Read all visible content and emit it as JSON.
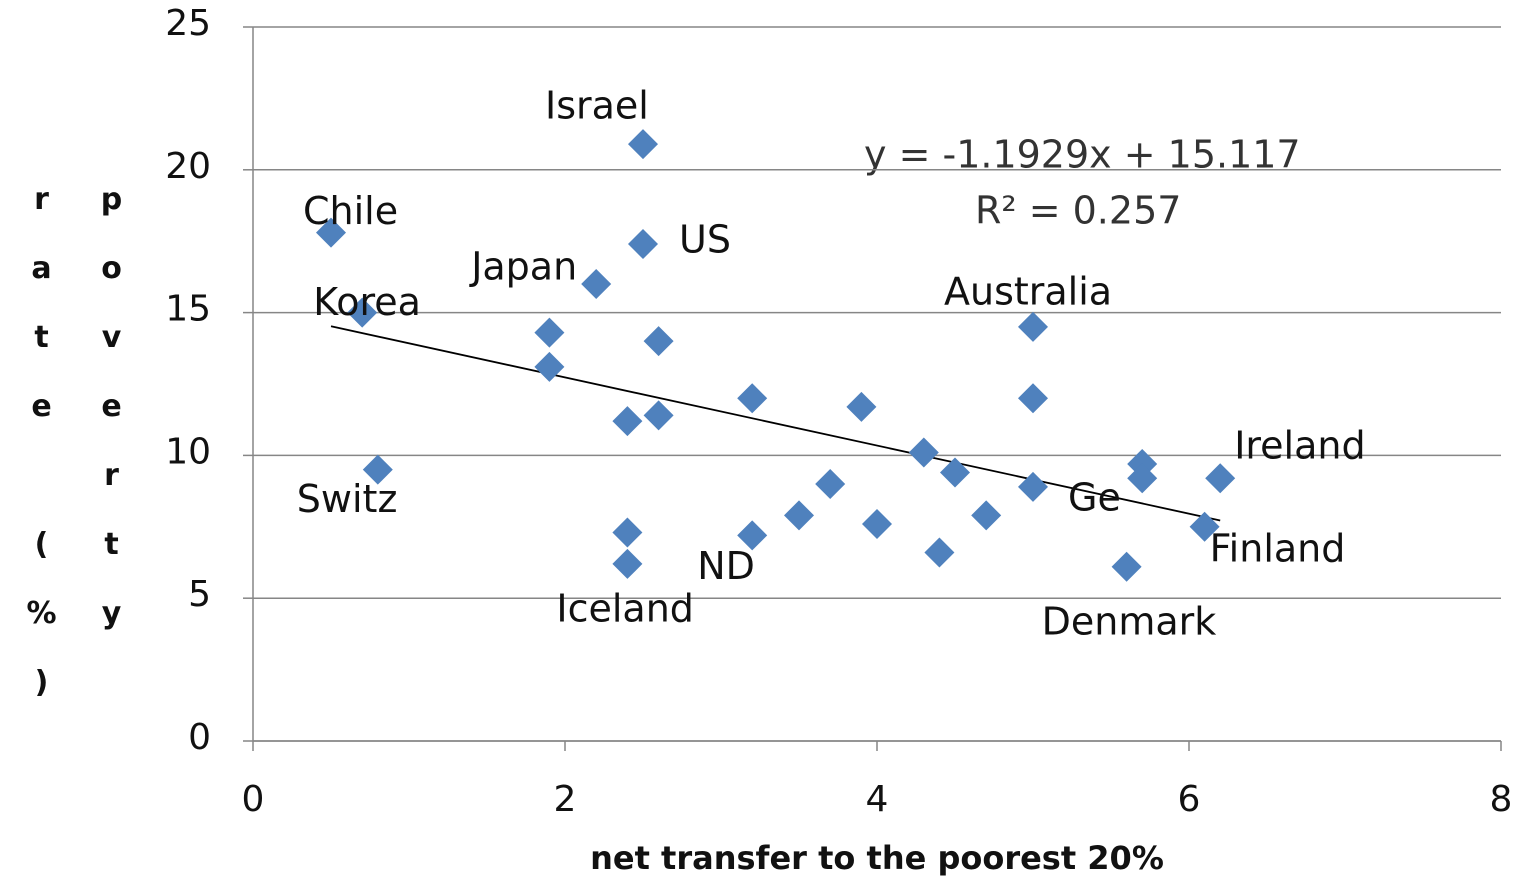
{
  "chart_data": {
    "type": "scatter",
    "xlabel": "net transfer to the poorest 20%",
    "ylabel": [
      "poverty",
      "rate (%)"
    ],
    "x": [
      0.5,
      0.7,
      0.8,
      2.5,
      2.5,
      2.2,
      1.9,
      1.9,
      2.6,
      2.4,
      2.6,
      2.4,
      2.4,
      3.2,
      3.2,
      3.5,
      3.7,
      3.9,
      4.0,
      4.3,
      4.5,
      4.4,
      4.7,
      5.0,
      5.0,
      5.0,
      5.7,
      5.7,
      5.6,
      6.1,
      6.2
    ],
    "values": [
      17.8,
      15.0,
      9.5,
      20.9,
      17.4,
      16.0,
      14.3,
      13.1,
      14.0,
      11.2,
      11.4,
      7.3,
      6.2,
      12.0,
      7.2,
      7.9,
      9.0,
      11.7,
      7.6,
      10.1,
      9.4,
      6.6,
      7.9,
      14.5,
      12.0,
      8.9,
      9.7,
      9.2,
      6.1,
      7.5,
      9.2
    ],
    "labels": [
      "Chile",
      "Korea",
      "Switz",
      "Israel",
      "US",
      "Japan",
      null,
      null,
      null,
      null,
      null,
      null,
      "Iceland",
      null,
      "ND",
      null,
      null,
      null,
      null,
      null,
      null,
      null,
      null,
      "Australia",
      null,
      "Ge",
      null,
      null,
      "Denmark",
      "Finland",
      "Ireland"
    ],
    "color": "#4f81bd",
    "xlim": [
      0,
      8
    ],
    "xticks": [
      0,
      2,
      4,
      6,
      8
    ],
    "ylim": [
      0,
      25
    ],
    "yticks": [
      0,
      5,
      10,
      15,
      20,
      25
    ],
    "grid": true,
    "trendline": {
      "slope": -1.1929,
      "intercept": 15.117,
      "equation": "y = -1.1929x + 15.117",
      "r_squared": 0.257,
      "r_squared_label": "R² = 0.257"
    }
  }
}
